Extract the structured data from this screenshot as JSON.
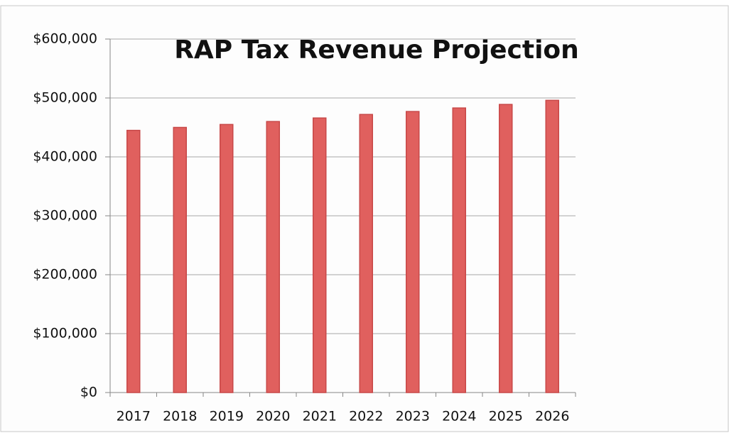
{
  "chart_data": {
    "type": "bar",
    "title": "RAP Tax Revenue Projection",
    "categories": [
      "2017",
      "2018",
      "2019",
      "2020",
      "2021",
      "2022",
      "2023",
      "2024",
      "2025",
      "2026"
    ],
    "values": [
      445000,
      450000,
      455000,
      460000,
      466000,
      472000,
      477000,
      483000,
      489000,
      496000
    ],
    "color": "#e0605e",
    "ylim": [
      0,
      600000
    ],
    "yticks": [
      {
        "value": 0,
        "label": "$0"
      },
      {
        "value": 100000,
        "label": "$100,000"
      },
      {
        "value": 200000,
        "label": "$200,000"
      },
      {
        "value": 300000,
        "label": "$300,000"
      },
      {
        "value": 400000,
        "label": "$400,000"
      },
      {
        "value": 500000,
        "label": "$500,000"
      },
      {
        "value": 600000,
        "label": "$600,000"
      }
    ],
    "grid": true
  }
}
